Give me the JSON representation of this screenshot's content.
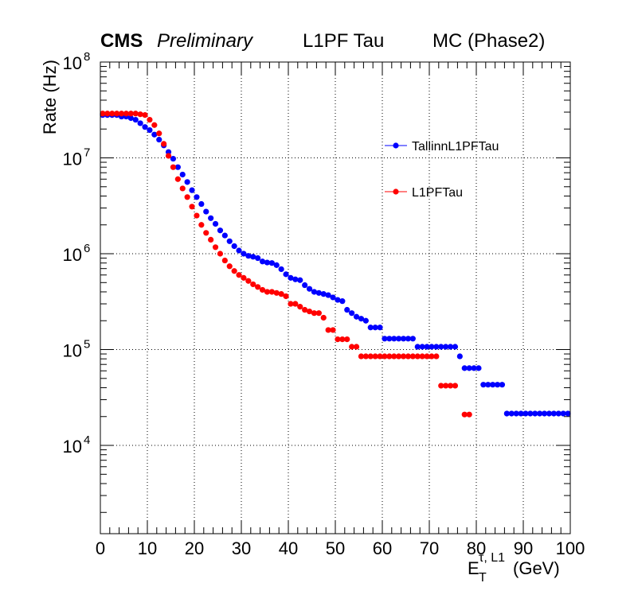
{
  "header": {
    "cms": "CMS",
    "preliminary": "Preliminary",
    "algo": "L1PF Tau",
    "sample": "MC (Phase2)"
  },
  "chart_data": {
    "type": "scatter",
    "title": "",
    "ylabel": "Rate (Hz)",
    "xlabel_main": "E",
    "xlabel_sub": "T",
    "xlabel_sup": "τ, L1",
    "xlabel_unit": "(GeV)",
    "x_scale": "linear",
    "y_scale": "log",
    "xlim": [
      0,
      100
    ],
    "ylim": [
      1200,
      100000000
    ],
    "x_tick_labels": [
      "0",
      "10",
      "20",
      "30",
      "40",
      "50",
      "60",
      "70",
      "80",
      "90",
      "100"
    ],
    "x_tick_values": [
      0,
      10,
      20,
      30,
      40,
      50,
      60,
      70,
      80,
      90,
      100
    ],
    "y_tick_base": "10",
    "y_tick_exponents": [
      "4",
      "5",
      "6",
      "7",
      "8"
    ],
    "y_tick_values": [
      10000,
      100000,
      1000000,
      10000000,
      100000000
    ],
    "grid": true,
    "legend_position": "top-right",
    "series": [
      {
        "name": "TallinnL1PFTau",
        "color": "#0000ff",
        "points": [
          [
            0.5,
            28000000
          ],
          [
            1.5,
            28000000
          ],
          [
            2.5,
            28000000
          ],
          [
            3.5,
            28000000
          ],
          [
            4.5,
            27000000
          ],
          [
            5.5,
            27000000
          ],
          [
            6.5,
            26000000
          ],
          [
            7.5,
            25000000
          ],
          [
            8.5,
            23000000
          ],
          [
            9.5,
            21000000
          ],
          [
            10.5,
            19500000
          ],
          [
            11.5,
            17500000
          ],
          [
            12.5,
            15500000
          ],
          [
            13.5,
            13500000
          ],
          [
            14.5,
            11500000
          ],
          [
            15.5,
            9800000
          ],
          [
            16.5,
            8000000
          ],
          [
            17.5,
            6700000
          ],
          [
            18.5,
            5600000
          ],
          [
            19.5,
            4600000
          ],
          [
            20.5,
            3900000
          ],
          [
            21.5,
            3300000
          ],
          [
            22.5,
            2750000
          ],
          [
            23.5,
            2350000
          ],
          [
            24.5,
            2050000
          ],
          [
            25.5,
            1750000
          ],
          [
            26.5,
            1550000
          ],
          [
            27.5,
            1350000
          ],
          [
            28.5,
            1200000
          ],
          [
            29.5,
            1080000
          ],
          [
            30.5,
            1000000
          ],
          [
            31.5,
            950000
          ],
          [
            32.5,
            930000
          ],
          [
            33.5,
            900000
          ],
          [
            34.5,
            830000
          ],
          [
            35.5,
            810000
          ],
          [
            36.5,
            800000
          ],
          [
            37.5,
            760000
          ],
          [
            38.5,
            690000
          ],
          [
            39.5,
            610000
          ],
          [
            40.5,
            560000
          ],
          [
            41.5,
            540000
          ],
          [
            42.5,
            530000
          ],
          [
            43.5,
            470000
          ],
          [
            44.5,
            430000
          ],
          [
            45.5,
            400000
          ],
          [
            46.5,
            390000
          ],
          [
            47.5,
            380000
          ],
          [
            48.5,
            370000
          ],
          [
            49.5,
            350000
          ],
          [
            50.5,
            330000
          ],
          [
            51.5,
            320000
          ],
          [
            52.5,
            260000
          ],
          [
            53.5,
            240000
          ],
          [
            54.5,
            220000
          ],
          [
            55.5,
            210000
          ],
          [
            56.5,
            200000
          ],
          [
            57.5,
            170000
          ],
          [
            58.5,
            170000
          ],
          [
            59.5,
            170000
          ],
          [
            60.5,
            130000
          ],
          [
            61.5,
            130000
          ],
          [
            62.5,
            130000
          ],
          [
            63.5,
            130000
          ],
          [
            64.5,
            130000
          ],
          [
            65.5,
            130000
          ],
          [
            66.5,
            130000
          ],
          [
            67.5,
            107000
          ],
          [
            68.5,
            107000
          ],
          [
            69.5,
            107000
          ],
          [
            70.5,
            107000
          ],
          [
            71.5,
            107000
          ],
          [
            72.5,
            107000
          ],
          [
            73.5,
            107000
          ],
          [
            74.5,
            107000
          ],
          [
            75.5,
            107000
          ],
          [
            76.5,
            85000
          ],
          [
            77.5,
            64000
          ],
          [
            78.5,
            64000
          ],
          [
            79.5,
            64000
          ],
          [
            80.5,
            64000
          ],
          [
            81.5,
            43000
          ],
          [
            82.5,
            43000
          ],
          [
            83.5,
            43000
          ],
          [
            84.5,
            43000
          ],
          [
            85.5,
            43000
          ],
          [
            86.5,
            21500
          ],
          [
            87.5,
            21500
          ],
          [
            88.5,
            21500
          ],
          [
            89.5,
            21500
          ],
          [
            90.5,
            21500
          ],
          [
            91.5,
            21500
          ],
          [
            92.5,
            21500
          ],
          [
            93.5,
            21500
          ],
          [
            94.5,
            21500
          ],
          [
            95.5,
            21500
          ],
          [
            96.5,
            21500
          ],
          [
            97.5,
            21500
          ],
          [
            98.5,
            21500
          ],
          [
            99.5,
            21500
          ]
        ]
      },
      {
        "name": "L1PFTau",
        "color": "#ff0000",
        "points": [
          [
            0.5,
            29000000
          ],
          [
            1.5,
            29000000
          ],
          [
            2.5,
            29000000
          ],
          [
            3.5,
            29000000
          ],
          [
            4.5,
            29000000
          ],
          [
            5.5,
            29000000
          ],
          [
            6.5,
            29000000
          ],
          [
            7.5,
            29000000
          ],
          [
            8.5,
            28500000
          ],
          [
            9.5,
            28000000
          ],
          [
            10.5,
            25000000
          ],
          [
            11.5,
            22000000
          ],
          [
            12.5,
            18000000
          ],
          [
            13.5,
            14000000
          ],
          [
            14.5,
            10500000
          ],
          [
            15.5,
            8000000
          ],
          [
            16.5,
            6000000
          ],
          [
            17.5,
            4800000
          ],
          [
            18.5,
            3900000
          ],
          [
            19.5,
            3100000
          ],
          [
            20.5,
            2500000
          ],
          [
            21.5,
            2000000
          ],
          [
            22.5,
            1650000
          ],
          [
            23.5,
            1400000
          ],
          [
            24.5,
            1170000
          ],
          [
            25.5,
            1000000
          ],
          [
            26.5,
            850000
          ],
          [
            27.5,
            740000
          ],
          [
            28.5,
            660000
          ],
          [
            29.5,
            600000
          ],
          [
            30.5,
            560000
          ],
          [
            31.5,
            520000
          ],
          [
            32.5,
            480000
          ],
          [
            33.5,
            450000
          ],
          [
            34.5,
            420000
          ],
          [
            35.5,
            400000
          ],
          [
            36.5,
            400000
          ],
          [
            37.5,
            390000
          ],
          [
            38.5,
            380000
          ],
          [
            39.5,
            360000
          ],
          [
            40.5,
            300000
          ],
          [
            41.5,
            300000
          ],
          [
            42.5,
            280000
          ],
          [
            43.5,
            260000
          ],
          [
            44.5,
            250000
          ],
          [
            45.5,
            240000
          ],
          [
            46.5,
            240000
          ],
          [
            47.5,
            215000
          ],
          [
            48.5,
            160000
          ],
          [
            49.5,
            160000
          ],
          [
            50.5,
            128000
          ],
          [
            51.5,
            128000
          ],
          [
            52.5,
            128000
          ],
          [
            53.5,
            107000
          ],
          [
            54.5,
            107000
          ],
          [
            55.5,
            85000
          ],
          [
            56.5,
            85000
          ],
          [
            57.5,
            85000
          ],
          [
            58.5,
            85000
          ],
          [
            59.5,
            85000
          ],
          [
            60.5,
            85000
          ],
          [
            61.5,
            85000
          ],
          [
            62.5,
            85000
          ],
          [
            63.5,
            85000
          ],
          [
            64.5,
            85000
          ],
          [
            65.5,
            85000
          ],
          [
            66.5,
            85000
          ],
          [
            67.5,
            85000
          ],
          [
            68.5,
            85000
          ],
          [
            69.5,
            85000
          ],
          [
            70.5,
            85000
          ],
          [
            71.5,
            85000
          ],
          [
            72.5,
            42000
          ],
          [
            73.5,
            42000
          ],
          [
            74.5,
            42000
          ],
          [
            75.5,
            42000
          ],
          [
            77.5,
            21000
          ],
          [
            78.5,
            21000
          ]
        ]
      }
    ]
  }
}
